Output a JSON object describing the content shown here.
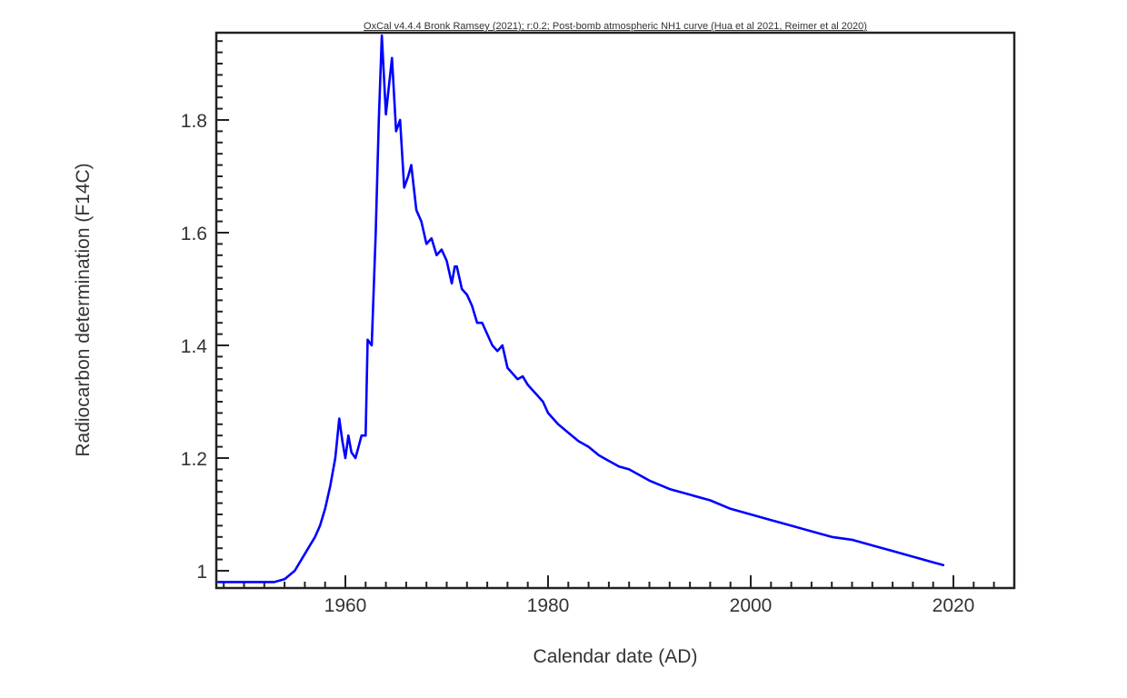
{
  "chart_data": {
    "type": "line",
    "title": "OxCal v4.4.4 Bronk Ramsey (2021); r:0.2; Post-bomb atmospheric NH1 curve (Hua et al 2021, Reimer et al 2020)",
    "xlabel": "Calendar date (AD)",
    "ylabel": "Radiocarbon determination (F14C)",
    "xlim": [
      1947.4,
      2026.4
    ],
    "ylim": [
      0.97,
      1.955
    ],
    "x_ticks": [
      1960,
      1980,
      2000,
      2020
    ],
    "x_tick_labels": [
      "1960",
      "1980",
      "2000",
      "2020"
    ],
    "y_ticks": [
      1,
      1.2,
      1.4,
      1.6,
      1.8
    ],
    "y_tick_labels": [
      "1",
      "1.2",
      "1.4",
      "1.6",
      "1.8"
    ],
    "x_minor_step": 2,
    "y_minor_step": 0.02,
    "grid": false,
    "legend": null,
    "line_color": "#0000ff",
    "series": [
      {
        "name": "Post-bomb atmospheric NH1 curve",
        "x": [
          1947.5,
          1949,
          1951,
          1953,
          1954,
          1955,
          1956,
          1957,
          1957.5,
          1958,
          1958.5,
          1959,
          1959.4,
          1959.7,
          1960,
          1960.3,
          1960.6,
          1961,
          1961.3,
          1961.6,
          1962,
          1962.2,
          1962.6,
          1963,
          1963.3,
          1963.6,
          1964,
          1964.3,
          1964.6,
          1965,
          1965.4,
          1965.8,
          1966.2,
          1966.5,
          1967,
          1967.5,
          1968,
          1968.5,
          1969,
          1969.5,
          1970,
          1970.5,
          1970.8,
          1971,
          1971.5,
          1972,
          1972.5,
          1973,
          1973.5,
          1974,
          1974.5,
          1975,
          1975.5,
          1976,
          1976.5,
          1977,
          1977.5,
          1978,
          1978.5,
          1979,
          1979.5,
          1980,
          1981,
          1982,
          1983,
          1984,
          1985,
          1986,
          1987,
          1988,
          1989,
          1990,
          1992,
          1994,
          1996,
          1998,
          2000,
          2002,
          2004,
          2006,
          2008,
          2010,
          2012,
          2014,
          2016,
          2018,
          2019
        ],
        "y": [
          0.98,
          0.98,
          0.98,
          0.98,
          0.985,
          1.0,
          1.03,
          1.06,
          1.08,
          1.11,
          1.15,
          1.2,
          1.27,
          1.23,
          1.2,
          1.24,
          1.21,
          1.2,
          1.22,
          1.24,
          1.24,
          1.41,
          1.4,
          1.6,
          1.8,
          1.95,
          1.81,
          1.86,
          1.91,
          1.78,
          1.8,
          1.68,
          1.7,
          1.72,
          1.64,
          1.62,
          1.58,
          1.59,
          1.56,
          1.57,
          1.55,
          1.51,
          1.54,
          1.54,
          1.5,
          1.49,
          1.47,
          1.44,
          1.44,
          1.42,
          1.4,
          1.39,
          1.4,
          1.36,
          1.35,
          1.34,
          1.345,
          1.33,
          1.32,
          1.31,
          1.3,
          1.28,
          1.26,
          1.245,
          1.23,
          1.22,
          1.205,
          1.195,
          1.185,
          1.18,
          1.17,
          1.16,
          1.145,
          1.135,
          1.125,
          1.11,
          1.1,
          1.09,
          1.08,
          1.07,
          1.06,
          1.055,
          1.045,
          1.035,
          1.025,
          1.015,
          1.01
        ]
      }
    ]
  }
}
